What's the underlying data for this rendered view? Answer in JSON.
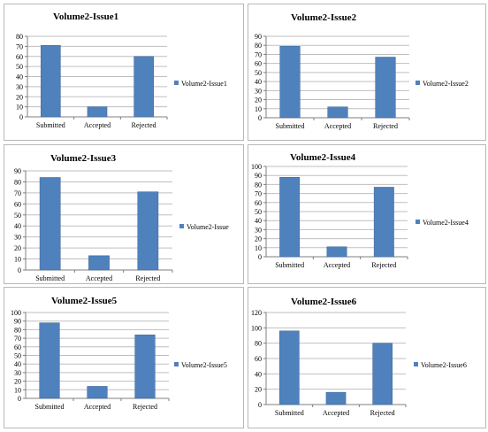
{
  "bar_color": "#4f81bd",
  "grid_color": "#bfbfbf",
  "chart_data": [
    {
      "type": "bar",
      "title": "Volume2-Issue1",
      "categories": [
        "Submitted",
        "Accepted",
        "Rejected"
      ],
      "series": [
        {
          "name": "Volume2-Issue1",
          "values": [
            71,
            10,
            60
          ]
        }
      ],
      "ylim": [
        0,
        80
      ],
      "ystep": 10,
      "grid": true,
      "legend": "right"
    },
    {
      "type": "bar",
      "title": "Volume2-Issue2",
      "categories": [
        "Submitted",
        "Accepted",
        "Rejected"
      ],
      "series": [
        {
          "name": "Volume2-Issue2",
          "values": [
            79,
            12,
            67
          ]
        }
      ],
      "ylim": [
        0,
        90
      ],
      "ystep": 10,
      "grid": true,
      "legend": "right"
    },
    {
      "type": "bar",
      "title": "Volume2-Issue3",
      "categories": [
        "Submitted",
        "Accepted",
        "Rejected"
      ],
      "series": [
        {
          "name": "Volume2-Issue",
          "values": [
            84,
            13,
            71
          ]
        }
      ],
      "ylim": [
        0,
        90
      ],
      "ystep": 10,
      "grid": true,
      "legend": "right"
    },
    {
      "type": "bar",
      "title": "Volume2-Issue4",
      "categories": [
        "Submitted",
        "Accepted",
        "Rejected"
      ],
      "series": [
        {
          "name": "Volume2-Issue4",
          "values": [
            88,
            11,
            77
          ]
        }
      ],
      "ylim": [
        0,
        100
      ],
      "ystep": 10,
      "grid": true,
      "legend": "right"
    },
    {
      "type": "bar",
      "title": "Volume2-Issue5",
      "categories": [
        "Submitted",
        "Accepted",
        "Rejected"
      ],
      "series": [
        {
          "name": "Volume2-Issue5",
          "values": [
            88,
            14,
            74
          ]
        }
      ],
      "ylim": [
        0,
        100
      ],
      "ystep": 10,
      "grid": true,
      "legend": "right"
    },
    {
      "type": "bar",
      "title": "Volume2-Issue6",
      "categories": [
        "Submitted",
        "Accepted",
        "Rejected"
      ],
      "series": [
        {
          "name": "Volume2-Issue6",
          "values": [
            96,
            16,
            80
          ]
        }
      ],
      "ylim": [
        0,
        120
      ],
      "ystep": 20,
      "grid": true,
      "legend": "right"
    }
  ]
}
